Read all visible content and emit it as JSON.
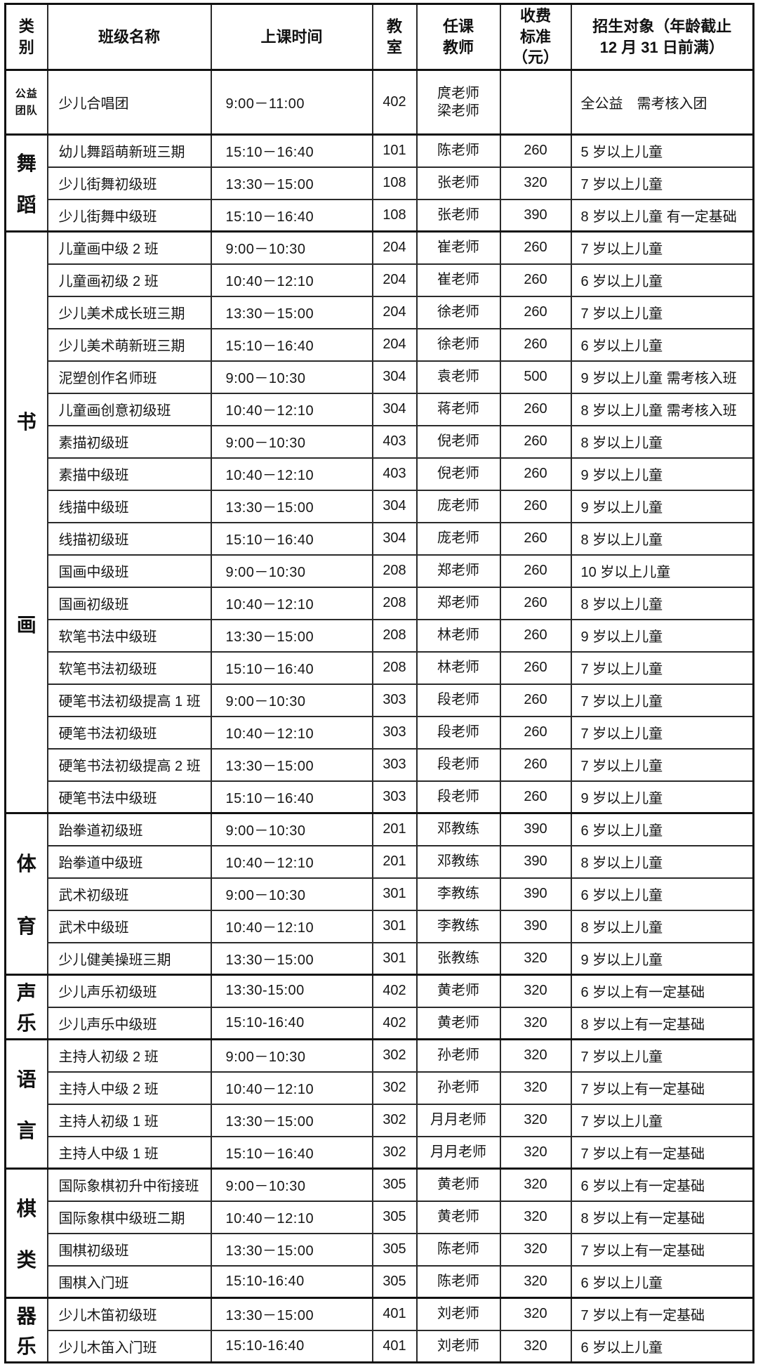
{
  "colors": {
    "background": "#ffffff",
    "border": "#111111",
    "text": "#161616"
  },
  "header": {
    "category": "类\n别",
    "class_name": "班级名称",
    "time": "上课时间",
    "room": "教\n室",
    "teacher": "任课\n教师",
    "fee": "收费\n标准\n（元）",
    "target": "招生对象（年龄截止\n12 月 31 日前满）"
  },
  "sections": [
    {
      "category": "公益\n团队",
      "rows": [
        {
          "name": "少儿合唱团",
          "time": "9:00－11:00",
          "room": "402",
          "teacher": "庹老师\n梁老师",
          "fee": "",
          "target": "全公益　需考核入团"
        }
      ]
    },
    {
      "category": "舞蹈",
      "rows": [
        {
          "name": "幼儿舞蹈萌新班三期",
          "time": "15:10－16:40",
          "room": "101",
          "teacher": "陈老师",
          "fee": "260",
          "target": "5 岁以上儿童"
        },
        {
          "name": "少儿街舞初级班",
          "time": "13:30－15:00",
          "room": "108",
          "teacher": "张老师",
          "fee": "320",
          "target": "7 岁以上儿童"
        },
        {
          "name": "少儿街舞中级班",
          "time": "15:10－16:40",
          "room": "108",
          "teacher": "张老师",
          "fee": "390",
          "target": "8 岁以上儿童 有一定基础"
        }
      ]
    },
    {
      "category": "书画",
      "rows": [
        {
          "name": "儿童画中级 2 班",
          "time": "9:00－10:30",
          "room": "204",
          "teacher": "崔老师",
          "fee": "260",
          "target": "7 岁以上儿童"
        },
        {
          "name": "儿童画初级 2 班",
          "time": "10:40－12:10",
          "room": "204",
          "teacher": "崔老师",
          "fee": "260",
          "target": "6 岁以上儿童"
        },
        {
          "name": "少儿美术成长班三期",
          "time": "13:30－15:00",
          "room": "204",
          "teacher": "徐老师",
          "fee": "260",
          "target": "7 岁以上儿童"
        },
        {
          "name": "少儿美术萌新班三期",
          "time": "15:10－16:40",
          "room": "204",
          "teacher": "徐老师",
          "fee": "260",
          "target": "6 岁以上儿童"
        },
        {
          "name": "泥塑创作名师班",
          "time": "9:00－10:30",
          "room": "304",
          "teacher": "袁老师",
          "fee": "500",
          "target": "9 岁以上儿童 需考核入班"
        },
        {
          "name": "儿童画创意初级班",
          "time": "10:40－12:10",
          "room": "304",
          "teacher": "蒋老师",
          "fee": "260",
          "target": "8 岁以上儿童 需考核入班"
        },
        {
          "name": "素描初级班",
          "time": "9:00－10:30",
          "room": "403",
          "teacher": "倪老师",
          "fee": "260",
          "target": "8 岁以上儿童"
        },
        {
          "name": "素描中级班",
          "time": "10:40－12:10",
          "room": "403",
          "teacher": "倪老师",
          "fee": "260",
          "target": "9 岁以上儿童"
        },
        {
          "name": "线描中级班",
          "time": "13:30－15:00",
          "room": "304",
          "teacher": "庞老师",
          "fee": "260",
          "target": "9 岁以上儿童"
        },
        {
          "name": "线描初级班",
          "time": "15:10－16:40",
          "room": "304",
          "teacher": "庞老师",
          "fee": "260",
          "target": "8 岁以上儿童"
        },
        {
          "name": "国画中级班",
          "time": "9:00－10:30",
          "room": "208",
          "teacher": "郑老师",
          "fee": "260",
          "target": "10 岁以上儿童"
        },
        {
          "name": "国画初级班",
          "time": "10:40－12:10",
          "room": "208",
          "teacher": "郑老师",
          "fee": "260",
          "target": "8 岁以上儿童"
        },
        {
          "name": "软笔书法中级班",
          "time": "13:30－15:00",
          "room": "208",
          "teacher": "林老师",
          "fee": "260",
          "target": "9 岁以上儿童"
        },
        {
          "name": "软笔书法初级班",
          "time": "15:10－16:40",
          "room": "208",
          "teacher": "林老师",
          "fee": "260",
          "target": "7 岁以上儿童"
        },
        {
          "name": "硬笔书法初级提高 1 班",
          "time": "9:00－10:30",
          "room": "303",
          "teacher": "段老师",
          "fee": "260",
          "target": "7 岁以上儿童"
        },
        {
          "name": "硬笔书法初级班",
          "time": "10:40－12:10",
          "room": "303",
          "teacher": "段老师",
          "fee": "260",
          "target": "7 岁以上儿童"
        },
        {
          "name": "硬笔书法初级提高 2 班",
          "time": "13:30－15:00",
          "room": "303",
          "teacher": "段老师",
          "fee": "260",
          "target": "7 岁以上儿童"
        },
        {
          "name": "硬笔书法中级班",
          "time": "15:10－16:40",
          "room": "303",
          "teacher": "段老师",
          "fee": "260",
          "target": "9 岁以上儿童"
        }
      ]
    },
    {
      "category": "体育",
      "rows": [
        {
          "name": "跆拳道初级班",
          "time": "9:00－10:30",
          "room": "201",
          "teacher": "邓教练",
          "fee": "390",
          "target": "6 岁以上儿童"
        },
        {
          "name": "跆拳道中级班",
          "time": "10:40－12:10",
          "room": "201",
          "teacher": "邓教练",
          "fee": "390",
          "target": "8 岁以上儿童"
        },
        {
          "name": "武术初级班",
          "time": "9:00－10:30",
          "room": "301",
          "teacher": "李教练",
          "fee": "390",
          "target": "6 岁以上儿童"
        },
        {
          "name": "武术中级班",
          "time": "10:40－12:10",
          "room": "301",
          "teacher": "李教练",
          "fee": "390",
          "target": "8 岁以上儿童"
        },
        {
          "name": "少儿健美操班三期",
          "time": "13:30－15:00",
          "room": "301",
          "teacher": "张教练",
          "fee": "320",
          "target": "9 岁以上儿童"
        }
      ]
    },
    {
      "category": "声乐",
      "rows": [
        {
          "name": "少儿声乐初级班",
          "time": "13:30-15:00",
          "room": "402",
          "teacher": "黄老师",
          "fee": "320",
          "target": "6 岁以上有一定基础"
        },
        {
          "name": "少儿声乐中级班",
          "time": "15:10-16:40",
          "room": "402",
          "teacher": "黄老师",
          "fee": "320",
          "target": "8 岁以上有一定基础"
        }
      ]
    },
    {
      "category": "语言",
      "rows": [
        {
          "name": "主持人初级 2 班",
          "time": "9:00－10:30",
          "room": "302",
          "teacher": "孙老师",
          "fee": "320",
          "target": "7 岁以上儿童"
        },
        {
          "name": "主持人中级 2 班",
          "time": "10:40－12:10",
          "room": "302",
          "teacher": "孙老师",
          "fee": "320",
          "target": "7 岁以上有一定基础"
        },
        {
          "name": "主持人初级 1 班",
          "time": "13:30－15:00",
          "room": "302",
          "teacher": "月月老师",
          "fee": "320",
          "target": "7 岁以上儿童"
        },
        {
          "name": "主持人中级 1 班",
          "time": "15:10－16:40",
          "room": "302",
          "teacher": "月月老师",
          "fee": "320",
          "target": "7 岁以上有一定基础"
        }
      ]
    },
    {
      "category": "棋类",
      "rows": [
        {
          "name": "国际象棋初升中衔接班",
          "time": "9:00－10:30",
          "room": "305",
          "teacher": "黄老师",
          "fee": "320",
          "target": "6 岁以上有一定基础"
        },
        {
          "name": "国际象棋中级班二期",
          "time": "10:40－12:10",
          "room": "305",
          "teacher": "黄老师",
          "fee": "320",
          "target": "8 岁以上有一定基础"
        },
        {
          "name": "围棋初级班",
          "time": "13:30－15:00",
          "room": "305",
          "teacher": "陈老师",
          "fee": "320",
          "target": "7 岁以上有一定基础"
        },
        {
          "name": "围棋入门班",
          "time": "15:10-16:40",
          "room": "305",
          "teacher": "陈老师",
          "fee": "320",
          "target": "6 岁以上儿童"
        }
      ]
    },
    {
      "category": "器乐",
      "rows": [
        {
          "name": "少儿木笛初级班",
          "time": "13:30－15:00",
          "room": "401",
          "teacher": "刘老师",
          "fee": "320",
          "target": "7 岁以上有一定基础"
        },
        {
          "name": "少儿木笛入门班",
          "time": "15:10-16:40",
          "room": "401",
          "teacher": "刘老师",
          "fee": "320",
          "target": "6 岁以上儿童"
        }
      ]
    }
  ]
}
